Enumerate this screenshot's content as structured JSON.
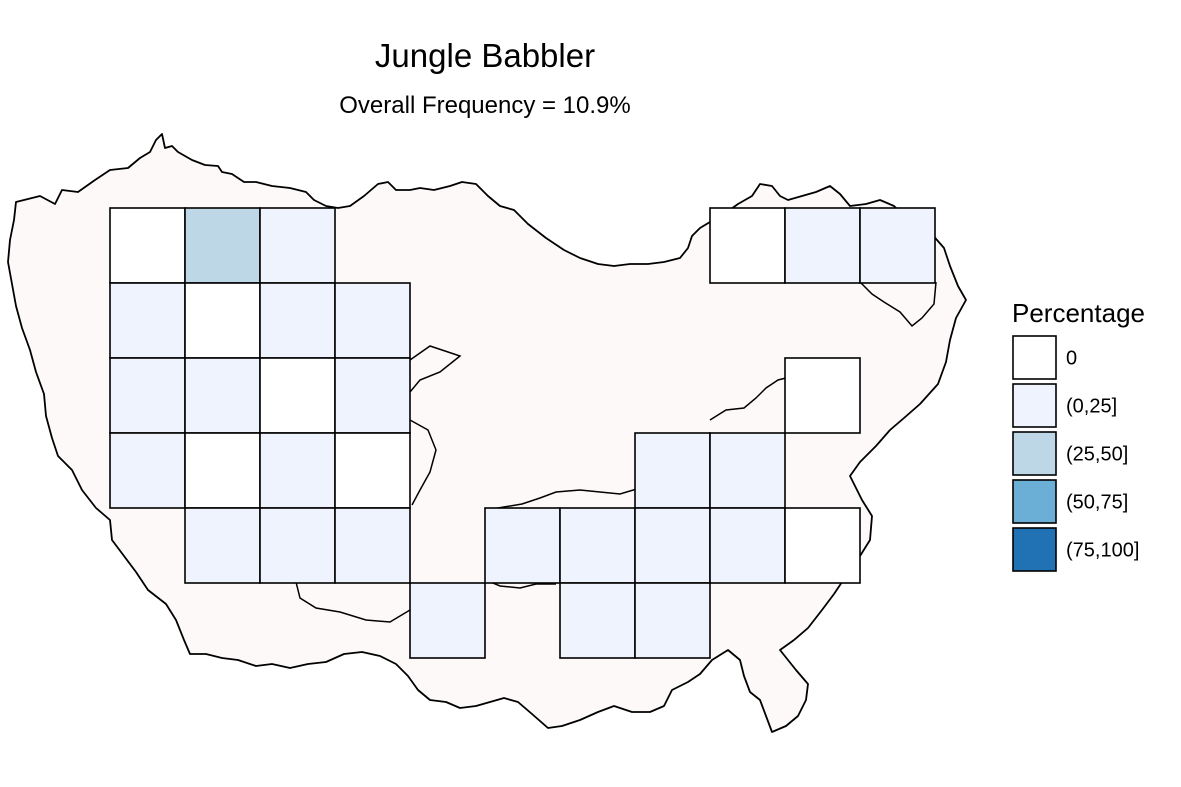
{
  "title": "Jungle Babbler",
  "subtitle": "Overall Frequency = 10.9%",
  "legend": {
    "title": "Percentage",
    "classes": [
      {
        "label": "0",
        "color": "#FFFFFF"
      },
      {
        "label": "(0,25]",
        "color": "#EEF3FD"
      },
      {
        "label": "(25,50]",
        "color": "#BDD7E7"
      },
      {
        "label": "(50,75]",
        "color": "#6BAED6"
      },
      {
        "label": "(75,100]",
        "color": "#2171B5"
      }
    ]
  },
  "colors": {
    "land_fill": "#FDF9F9",
    "outline": "#000000"
  },
  "grid_cells": [
    {
      "col": 0,
      "row": 0,
      "cls": 0
    },
    {
      "col": 1,
      "row": 0,
      "cls": 2
    },
    {
      "col": 2,
      "row": 0,
      "cls": 1
    },
    {
      "col": 0,
      "row": 1,
      "cls": 1
    },
    {
      "col": 1,
      "row": 1,
      "cls": 0
    },
    {
      "col": 2,
      "row": 1,
      "cls": 1
    },
    {
      "col": 3,
      "row": 1,
      "cls": 1
    },
    {
      "col": 0,
      "row": 2,
      "cls": 1
    },
    {
      "col": 1,
      "row": 2,
      "cls": 1
    },
    {
      "col": 2,
      "row": 2,
      "cls": 0
    },
    {
      "col": 3,
      "row": 2,
      "cls": 1
    },
    {
      "col": 0,
      "row": 3,
      "cls": 1
    },
    {
      "col": 1,
      "row": 3,
      "cls": 0
    },
    {
      "col": 2,
      "row": 3,
      "cls": 1
    },
    {
      "col": 3,
      "row": 3,
      "cls": 0
    },
    {
      "col": 1,
      "row": 4,
      "cls": 1
    },
    {
      "col": 2,
      "row": 4,
      "cls": 1
    },
    {
      "col": 3,
      "row": 4,
      "cls": 1
    },
    {
      "col": 4,
      "row": 5,
      "cls": 1
    },
    {
      "col": 5,
      "row": 4,
      "cls": 1
    },
    {
      "col": 6,
      "row": 4,
      "cls": 1
    },
    {
      "col": 6,
      "row": 5,
      "cls": 1
    },
    {
      "col": 7,
      "row": 3,
      "cls": 1
    },
    {
      "col": 7,
      "row": 4,
      "cls": 1
    },
    {
      "col": 7,
      "row": 5,
      "cls": 1
    },
    {
      "col": 8,
      "row": 3,
      "cls": 1
    },
    {
      "col": 8,
      "row": 4,
      "cls": 1
    },
    {
      "col": 9,
      "row": 2,
      "cls": 0
    },
    {
      "col": 9,
      "row": 4,
      "cls": 0
    },
    {
      "col": 8,
      "row": 0,
      "cls": 0
    },
    {
      "col": 9,
      "row": 0,
      "cls": 1
    },
    {
      "col": 10,
      "row": 0,
      "cls": 1
    }
  ]
}
